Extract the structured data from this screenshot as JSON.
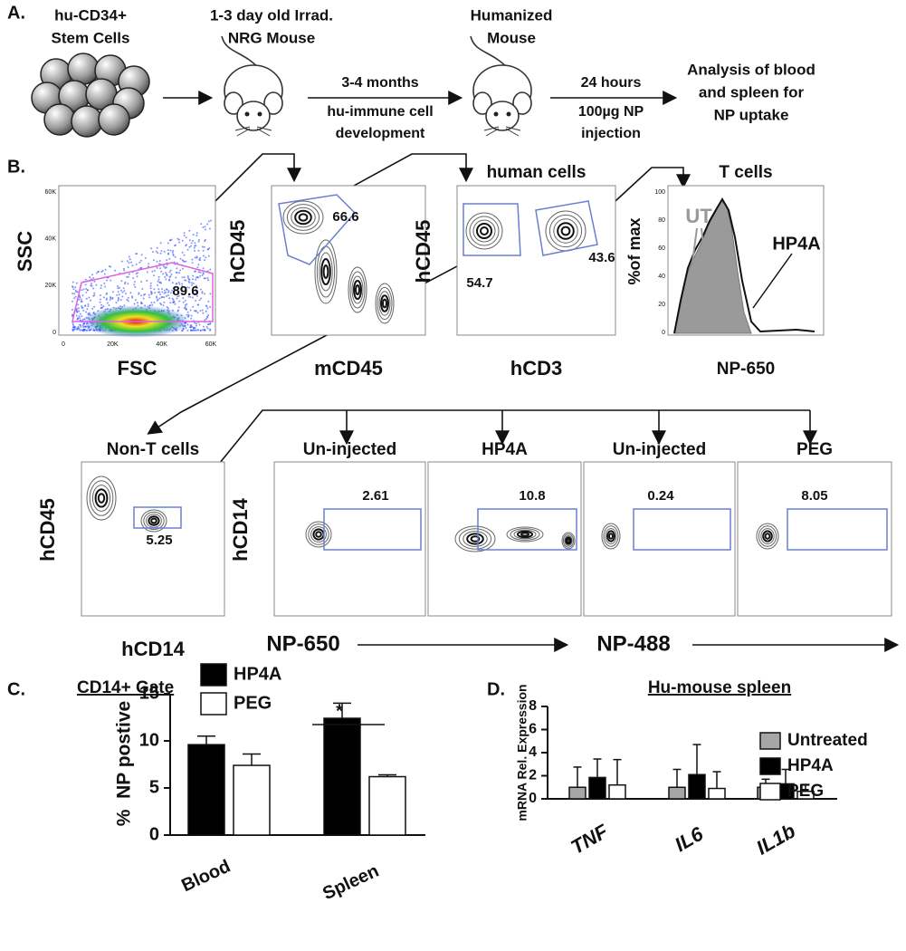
{
  "panel_a": {
    "label": "A.",
    "steps": [
      [
        "hu-CD34+",
        "Stem Cells"
      ],
      [
        "1-3 day old Irrad.",
        "NRG Mouse"
      ],
      [
        "Humanized",
        "Mouse"
      ],
      [
        "Analysis of blood",
        "and spleen for",
        "NP uptake"
      ]
    ],
    "transitions": [
      [
        "3-4 months",
        "hu-immune cell",
        "development"
      ],
      [
        "24 hours",
        "100µg NP",
        "injection"
      ]
    ]
  },
  "panel_b": {
    "label": "B.",
    "plots": [
      {
        "x_label": "FSC",
        "y_label": "SSC",
        "gates": [
          89.6
        ],
        "x_ticks": [
          "0",
          "20K",
          "40K",
          "60K"
        ],
        "y_ticks": [
          "0",
          "20K",
          "40K",
          "60K"
        ]
      },
      {
        "x_label": "mCD45",
        "y_label": "hCD45",
        "gates": [
          66.6
        ]
      },
      {
        "title": "human cells",
        "x_label": "hCD3",
        "y_label": "hCD45",
        "gates": [
          54.7,
          43.6
        ]
      },
      {
        "title": "T cells",
        "x_label": "NP-650",
        "y_label": "%of max",
        "histogram_labels": [
          "UT",
          "HP4A"
        ],
        "y_ticks": [
          "0",
          "20",
          "40",
          "60",
          "80",
          "100"
        ]
      },
      {
        "title": "Non-T cells",
        "x_label": "hCD14",
        "y_label": "hCD45",
        "gates": [
          5.25
        ]
      },
      {
        "title": "Un-injected",
        "y_label": "hCD14",
        "gates": [
          2.61
        ]
      },
      {
        "title": "HP4A",
        "gates": [
          10.8
        ]
      },
      {
        "title": "Un-injected",
        "gates": [
          0.24
        ]
      },
      {
        "title": "PEG",
        "gates": [
          8.05
        ]
      }
    ],
    "axis_arrows": [
      "NP-650",
      "NP-488"
    ]
  },
  "chart_data": [
    {
      "type": "bar",
      "label": "C.",
      "title": "CD14+ Gate",
      "y_label": "%  NP postive",
      "categories": [
        "Blood",
        "Spleen"
      ],
      "series": [
        {
          "name": "HP4A",
          "color": "#000000",
          "values": [
            9.6,
            12.4
          ],
          "errors": [
            0.9,
            1.6
          ]
        },
        {
          "name": "PEG",
          "color": "#ffffff",
          "values": [
            7.4,
            6.2
          ],
          "errors": [
            1.2,
            0.2
          ]
        }
      ],
      "ylim": [
        0,
        15
      ],
      "yticks": [
        0,
        5,
        10,
        15
      ],
      "annotations": [
        "*"
      ]
    },
    {
      "type": "bar",
      "label": "D.",
      "title": "Hu-mouse spleen",
      "y_label": "mRNA Rel. Expression",
      "categories": [
        "TNF",
        "IL6",
        "IL1b"
      ],
      "series": [
        {
          "name": "Untreated",
          "color": "#a6a6a6",
          "values": [
            1,
            1,
            1
          ],
          "errors": [
            1.75,
            1.55,
            0.7
          ]
        },
        {
          "name": "HP4A",
          "color": "#000000",
          "values": [
            1.85,
            2.1,
            1.3
          ],
          "errors": [
            1.6,
            2.6,
            1.25
          ]
        },
        {
          "name": "PEG",
          "color": "#ffffff",
          "values": [
            1.2,
            0.9,
            0.65
          ],
          "errors": [
            2.2,
            1.45,
            0.6
          ]
        }
      ],
      "ylim": [
        0,
        8
      ],
      "yticks": [
        0,
        2,
        4,
        6,
        8
      ]
    }
  ]
}
